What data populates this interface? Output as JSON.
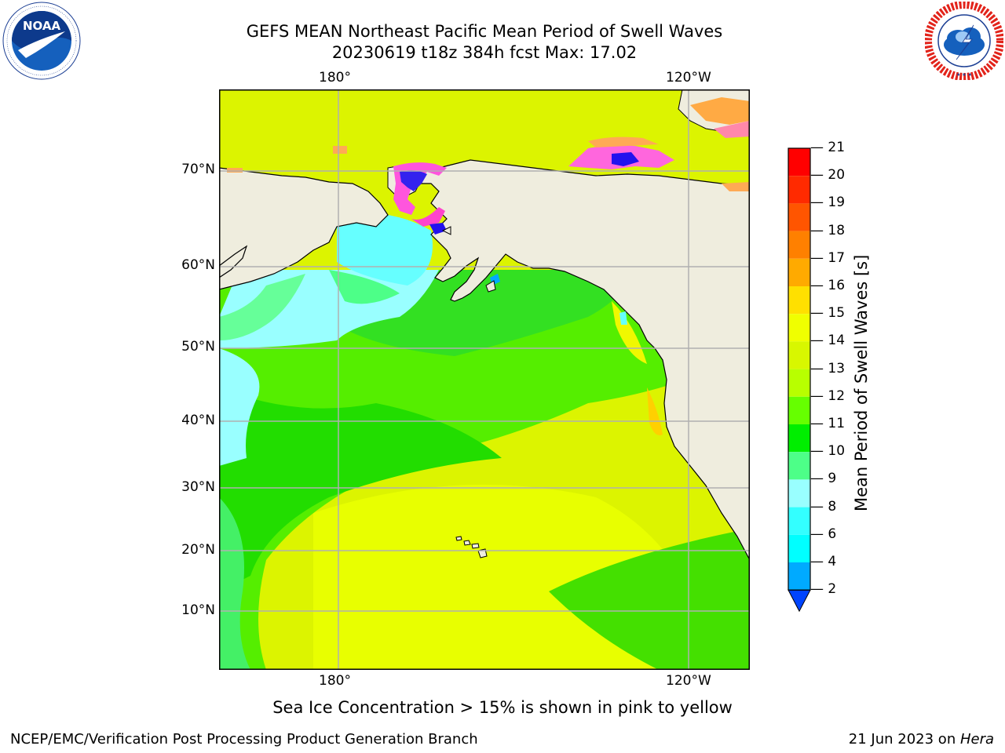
{
  "header": {
    "title_line1": "GEFS MEAN Northeast Pacific Mean Period of Swell Waves",
    "title_line2": "20230619 t18z 384h fcst   Max: 17.02"
  },
  "logos": {
    "noaa": {
      "text": "NOAA",
      "ring_text": "NATIONAL OCEANIC AND ATMOSPHERIC ADMINISTRATION · U.S. DEPARTMENT OF COMMERCE"
    },
    "nws": {
      "ring_text": "NATIONAL WEATHER SERVICE"
    }
  },
  "map": {
    "lon_labels_top": [
      "180°",
      "120°W"
    ],
    "lon_labels_bottom": [
      "180°",
      "120°W"
    ],
    "lat_labels": [
      "70°N",
      "60°N",
      "50°N",
      "40°N",
      "30°N",
      "20°N",
      "10°N"
    ],
    "colors": {
      "land": "#efedde",
      "grid": "#b0b0b0",
      "coast": "#000000"
    }
  },
  "colorbar": {
    "title": "Mean Period of Swell Waves [s]",
    "ticks": [
      "21",
      "20",
      "19",
      "18",
      "17",
      "16",
      "15",
      "14",
      "13",
      "12",
      "11",
      "10",
      "9",
      "8",
      "6",
      "4",
      "2"
    ],
    "colors_top_to_bottom": [
      "#ff0000",
      "#ff2a00",
      "#ff5500",
      "#ff8000",
      "#ffaa00",
      "#ffe000",
      "#f0ff00",
      "#d8f700",
      "#b8ff00",
      "#66ff00",
      "#00ee00",
      "#4dff88",
      "#99ffff",
      "#33ffff",
      "#00ffff",
      "#00aaff",
      "#0044ff"
    ]
  },
  "caption": "Sea Ice Concentration > 15% is shown in pink to yellow",
  "footer": {
    "left": "NCEP/EMC/Verification Post Processing Product Generation Branch",
    "right_prefix": "21 Jun 2023 on ",
    "right_host": "Hera"
  }
}
